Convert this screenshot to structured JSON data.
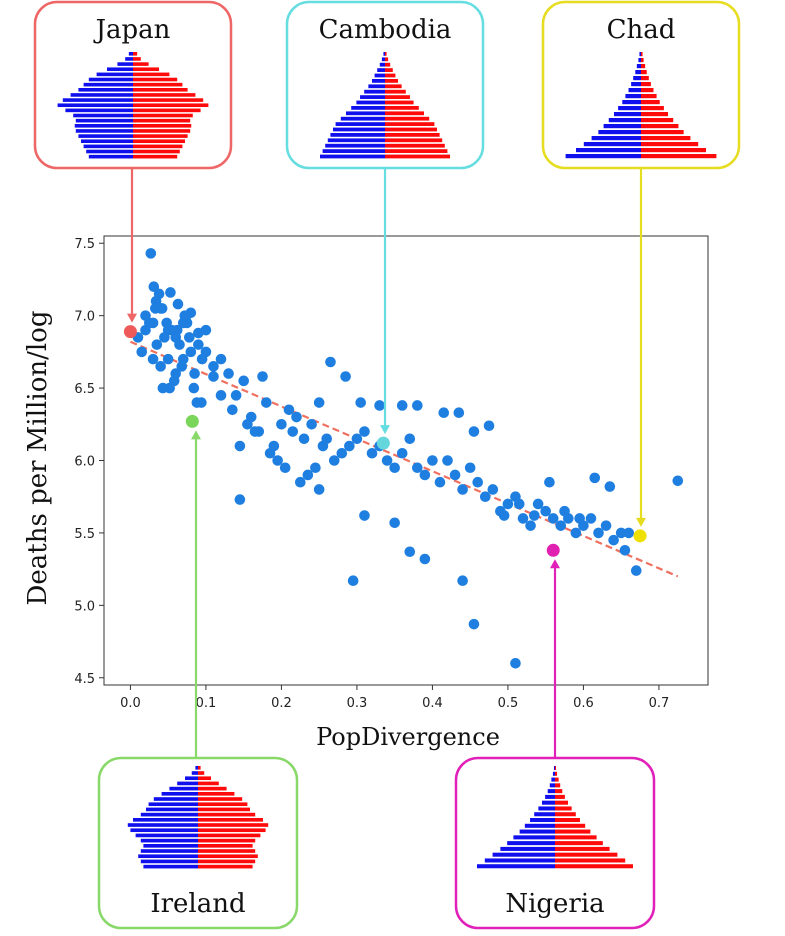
{
  "chart_data": {
    "type": "scatter",
    "title": "",
    "xlabel": "PopDivergence",
    "ylabel": "Deaths per Million/log",
    "xlim": [
      -0.035,
      0.765
    ],
    "ylim": [
      4.45,
      7.55
    ],
    "xticks": [
      "0.0",
      "0.1",
      "0.2",
      "0.3",
      "0.4",
      "0.5",
      "0.6",
      "0.7"
    ],
    "xtick_values": [
      0.0,
      0.1,
      0.2,
      0.3,
      0.4,
      0.5,
      0.6,
      0.7
    ],
    "yticks": [
      "4.5",
      "5.0",
      "5.5",
      "6.0",
      "6.5",
      "7.0",
      "7.5"
    ],
    "ytick_values": [
      4.5,
      5.0,
      5.5,
      6.0,
      6.5,
      7.0,
      7.5
    ],
    "grid": false,
    "points": {
      "color": "#1f7fe0",
      "x": [
        0.01,
        0.015,
        0.02,
        0.025,
        0.03,
        0.035,
        0.04,
        0.045,
        0.05,
        0.055,
        0.06,
        0.065,
        0.07,
        0.075,
        0.08,
        0.085,
        0.09,
        0.095,
        0.1,
        0.11,
        0.027,
        0.031,
        0.034,
        0.038,
        0.042,
        0.048,
        0.052,
        0.058,
        0.062,
        0.068,
        0.072,
        0.078,
        0.084,
        0.088,
        0.094,
        0.033,
        0.043,
        0.053,
        0.063,
        0.073,
        0.12,
        0.13,
        0.14,
        0.15,
        0.16,
        0.17,
        0.18,
        0.19,
        0.2,
        0.21,
        0.22,
        0.23,
        0.24,
        0.25,
        0.12,
        0.135,
        0.155,
        0.175,
        0.195,
        0.215,
        0.235,
        0.255,
        0.145,
        0.165,
        0.185,
        0.205,
        0.225,
        0.245,
        0.26,
        0.27,
        0.28,
        0.29,
        0.3,
        0.31,
        0.32,
        0.33,
        0.34,
        0.35,
        0.36,
        0.37,
        0.38,
        0.39,
        0.4,
        0.41,
        0.42,
        0.43,
        0.44,
        0.45,
        0.46,
        0.47,
        0.48,
        0.49,
        0.5,
        0.51,
        0.52,
        0.53,
        0.54,
        0.55,
        0.56,
        0.57,
        0.58,
        0.59,
        0.6,
        0.61,
        0.62,
        0.63,
        0.64,
        0.65,
        0.66,
        0.295,
        0.31,
        0.35,
        0.37,
        0.39,
        0.44,
        0.455,
        0.51,
        0.145,
        0.25,
        0.265,
        0.285,
        0.305,
        0.33,
        0.36,
        0.38,
        0.415,
        0.435,
        0.455,
        0.475,
        0.495,
        0.515,
        0.535,
        0.555,
        0.575,
        0.595,
        0.615,
        0.635,
        0.655,
        0.67,
        0.725,
        0.02,
        0.03,
        0.04,
        0.05,
        0.06,
        0.07,
        0.08,
        0.09,
        0.1,
        0.11
      ],
      "y": [
        6.85,
        6.75,
        6.9,
        6.95,
        6.7,
        6.8,
        6.65,
        6.85,
        6.7,
        6.9,
        6.6,
        6.8,
        6.7,
        6.95,
        6.75,
        6.6,
        6.8,
        6.7,
        6.9,
        6.65,
        7.43,
        7.2,
        7.1,
        7.15,
        7.05,
        6.95,
        6.5,
        6.55,
        6.9,
        6.65,
        7.0,
        6.85,
        6.5,
        6.4,
        6.4,
        7.05,
        6.5,
        7.16,
        7.08,
        6.98,
        6.7,
        6.6,
        6.45,
        6.55,
        6.3,
        6.2,
        6.4,
        6.1,
        6.25,
        6.35,
        6.3,
        6.15,
        6.25,
        6.4,
        6.45,
        6.35,
        6.25,
        6.58,
        6.0,
        6.2,
        5.9,
        6.1,
        6.1,
        6.2,
        6.05,
        5.95,
        5.85,
        5.95,
        6.15,
        6.0,
        6.05,
        6.1,
        6.15,
        6.2,
        6.05,
        6.1,
        6.0,
        5.95,
        6.05,
        6.15,
        5.95,
        5.9,
        6.0,
        5.85,
        6.0,
        5.9,
        5.8,
        5.95,
        5.85,
        5.75,
        5.8,
        5.65,
        5.7,
        5.75,
        5.6,
        5.55,
        5.7,
        5.65,
        5.6,
        5.55,
        5.6,
        5.5,
        5.55,
        5.6,
        5.5,
        5.55,
        5.45,
        5.5,
        5.5,
        5.17,
        5.62,
        5.57,
        5.37,
        5.32,
        5.17,
        4.87,
        4.6,
        5.73,
        5.8,
        6.68,
        6.58,
        6.4,
        6.38,
        6.38,
        6.38,
        6.33,
        6.33,
        6.2,
        6.24,
        5.62,
        5.7,
        5.62,
        5.85,
        5.65,
        5.6,
        5.88,
        5.82,
        5.38,
        5.24,
        5.86,
        7.0,
        6.95,
        7.05,
        6.9,
        6.85,
        6.95,
        7.02,
        6.88,
        6.75,
        6.58
      ],
      "count_note": ""
    },
    "trendline": {
      "color": "#f07060",
      "style": "dashed",
      "x0": 0.0,
      "y0": 6.82,
      "x1": 0.725,
      "y1": 5.2
    },
    "highlights": [
      {
        "country": "Japan",
        "x": 0.0,
        "y": 6.89,
        "color": "#ee5a5a",
        "box_border": "#ee6666",
        "box_position": "top"
      },
      {
        "country": "Cambodia",
        "x": 0.335,
        "y": 6.12,
        "color": "#66d6dd",
        "box_border": "#66dde0",
        "box_position": "top"
      },
      {
        "country": "Chad",
        "x": 0.675,
        "y": 5.48,
        "color": "#eee000",
        "box_border": "#e6dc20",
        "box_position": "top"
      },
      {
        "country": "Ireland",
        "x": 0.082,
        "y": 6.27,
        "color": "#7ad65a",
        "box_border": "#88d86a",
        "box_position": "bottom"
      },
      {
        "country": "Nigeria",
        "x": 0.56,
        "y": 5.38,
        "color": "#e020b0",
        "box_border": "#e020b8",
        "box_position": "bottom"
      }
    ],
    "pyramids": {
      "male_color": "#1010ee",
      "female_color": "#ff0a0a",
      "Japan": [
        0.85,
        0.9,
        0.95,
        1.0,
        1.05,
        1.1,
        1.12,
        1.1,
        1.15,
        1.3,
        1.45,
        1.35,
        1.2,
        1.05,
        0.95,
        0.85,
        0.7,
        0.5,
        0.3,
        0.15,
        0.08
      ],
      "Cambodia": [
        1.25,
        1.2,
        1.15,
        1.1,
        1.05,
        1.0,
        0.95,
        0.85,
        0.75,
        0.65,
        0.55,
        0.48,
        0.4,
        0.32,
        0.25,
        0.2,
        0.15,
        0.1,
        0.06,
        0.03
      ],
      "Chad": [
        1.45,
        1.25,
        1.1,
        0.95,
        0.82,
        0.72,
        0.62,
        0.52,
        0.44,
        0.36,
        0.3,
        0.24,
        0.19,
        0.15,
        0.11,
        0.08,
        0.05,
        0.03
      ],
      "Ireland": [
        1.05,
        1.1,
        1.15,
        1.1,
        1.05,
        1.1,
        1.2,
        1.3,
        1.35,
        1.25,
        1.1,
        1.0,
        0.95,
        0.85,
        0.7,
        0.55,
        0.4,
        0.25,
        0.12,
        0.05
      ],
      "Nigeria": [
        1.5,
        1.35,
        1.2,
        1.05,
        0.92,
        0.8,
        0.68,
        0.58,
        0.48,
        0.4,
        0.32,
        0.25,
        0.19,
        0.14,
        0.1,
        0.07,
        0.04,
        0.02
      ]
    }
  }
}
